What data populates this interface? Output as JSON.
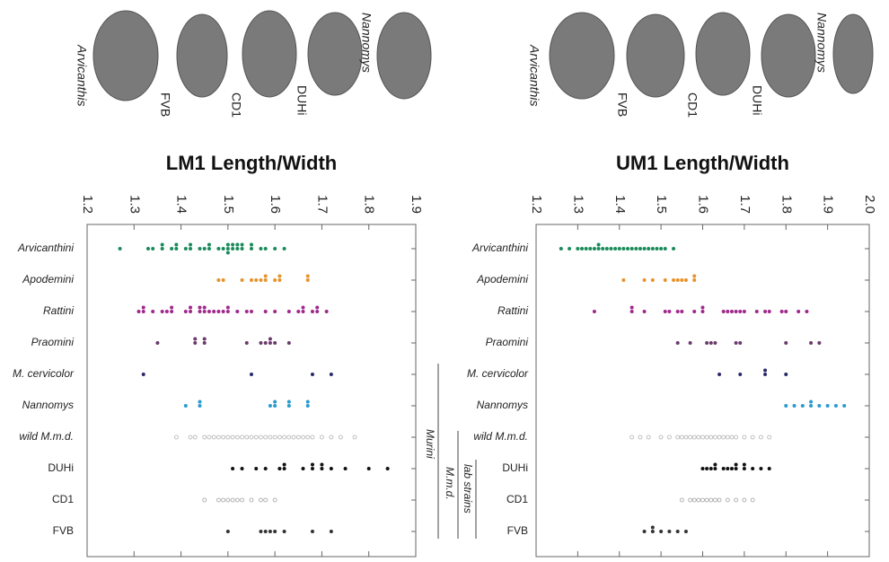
{
  "teeth": {
    "left": [
      "Arvicanthis",
      "FVB",
      "CD1",
      "DUHi",
      "Nannomys"
    ],
    "right": [
      "Arvicanthis",
      "FVB",
      "CD1",
      "DUHi",
      "Nannomys"
    ]
  },
  "groups": [
    "Murini",
    "M.m.d.",
    "lab strains"
  ],
  "chart_data": [
    {
      "type": "dot",
      "title": "LM1 Length/Width",
      "xlim": [
        1.2,
        1.9
      ],
      "xticks": [
        1.2,
        1.3,
        1.4,
        1.5,
        1.6,
        1.7,
        1.8,
        1.9
      ],
      "categories": [
        "Arvicanthini",
        "Apodemini",
        "Rattini",
        "Praomini",
        "M. cervicolor",
        "Nannomys",
        "wild M.m.d.",
        "DUHi",
        "CD1",
        "FVB"
      ],
      "colors": [
        "#1a8a5a",
        "#e8922a",
        "#a0288c",
        "#6a3a6a",
        "#2a2a6a",
        "#2a9ad0",
        "#b0b0b0",
        "#111111",
        "#a0a0a0",
        "#333333"
      ],
      "values": [
        [
          1.27,
          1.33,
          1.34,
          1.36,
          1.36,
          1.38,
          1.39,
          1.39,
          1.41,
          1.42,
          1.42,
          1.44,
          1.45,
          1.46,
          1.46,
          1.48,
          1.49,
          1.5,
          1.5,
          1.5,
          1.51,
          1.51,
          1.52,
          1.52,
          1.53,
          1.53,
          1.55,
          1.55,
          1.57,
          1.58,
          1.6,
          1.62
        ],
        [
          1.48,
          1.49,
          1.53,
          1.55,
          1.56,
          1.57,
          1.58,
          1.58,
          1.6,
          1.61,
          1.61,
          1.67,
          1.67
        ],
        [
          1.31,
          1.32,
          1.32,
          1.34,
          1.36,
          1.37,
          1.38,
          1.38,
          1.41,
          1.42,
          1.42,
          1.44,
          1.44,
          1.45,
          1.45,
          1.46,
          1.47,
          1.48,
          1.49,
          1.5,
          1.5,
          1.52,
          1.54,
          1.55,
          1.58,
          1.6,
          1.63,
          1.65,
          1.66,
          1.66,
          1.68,
          1.69,
          1.69,
          1.71
        ],
        [
          1.35,
          1.43,
          1.43,
          1.45,
          1.45,
          1.54,
          1.57,
          1.58,
          1.59,
          1.59,
          1.6,
          1.63
        ],
        [
          1.32,
          1.55,
          1.68,
          1.72
        ],
        [
          1.41,
          1.44,
          1.44,
          1.59,
          1.6,
          1.6,
          1.63,
          1.63,
          1.67,
          1.67
        ],
        [
          1.39,
          1.42,
          1.43,
          1.45,
          1.46,
          1.47,
          1.48,
          1.49,
          1.5,
          1.51,
          1.52,
          1.53,
          1.54,
          1.55,
          1.56,
          1.57,
          1.58,
          1.59,
          1.6,
          1.61,
          1.62,
          1.63,
          1.64,
          1.65,
          1.66,
          1.67,
          1.68,
          1.7,
          1.72,
          1.74,
          1.77
        ],
        [
          1.51,
          1.53,
          1.56,
          1.58,
          1.61,
          1.62,
          1.62,
          1.66,
          1.68,
          1.68,
          1.7,
          1.7,
          1.72,
          1.75,
          1.8,
          1.84
        ],
        [
          1.45,
          1.48,
          1.49,
          1.5,
          1.51,
          1.52,
          1.53,
          1.55,
          1.57,
          1.58,
          1.6
        ],
        [
          1.5,
          1.57,
          1.58,
          1.59,
          1.6,
          1.62,
          1.68,
          1.72
        ]
      ]
    },
    {
      "type": "dot",
      "title": "UM1 Length/Width",
      "xlim": [
        1.2,
        2.0
      ],
      "xticks": [
        1.2,
        1.3,
        1.4,
        1.5,
        1.6,
        1.7,
        1.8,
        1.9,
        {
          "value": 2,
          "label": "2.0"
        }
      ],
      "categories": [
        "Arvicanthini",
        "Apodemini",
        "Rattini",
        "Praomini",
        "M. cervicolor",
        "Nannomys",
        "wild M.m.d.",
        "DUHi",
        "CD1",
        "FVB"
      ],
      "colors": [
        "#1a8a5a",
        "#e8922a",
        "#a0288c",
        "#6a3a6a",
        "#2a2a6a",
        "#2a9ad0",
        "#b0b0b0",
        "#111111",
        "#a0a0a0",
        "#333333"
      ],
      "values": [
        [
          1.26,
          1.28,
          1.3,
          1.31,
          1.32,
          1.33,
          1.34,
          1.35,
          1.35,
          1.36,
          1.37,
          1.38,
          1.39,
          1.4,
          1.41,
          1.42,
          1.43,
          1.44,
          1.45,
          1.46,
          1.47,
          1.48,
          1.49,
          1.5,
          1.51,
          1.53
        ],
        [
          1.41,
          1.46,
          1.48,
          1.51,
          1.53,
          1.54,
          1.55,
          1.56,
          1.58,
          1.58
        ],
        [
          1.34,
          1.43,
          1.43,
          1.46,
          1.51,
          1.52,
          1.54,
          1.55,
          1.58,
          1.6,
          1.6,
          1.65,
          1.66,
          1.67,
          1.68,
          1.69,
          1.7,
          1.73,
          1.75,
          1.76,
          1.79,
          1.8,
          1.83,
          1.85
        ],
        [
          1.54,
          1.57,
          1.61,
          1.62,
          1.63,
          1.68,
          1.69,
          1.8,
          1.86,
          1.88
        ],
        [
          1.64,
          1.69,
          1.75,
          1.75,
          1.8
        ],
        [
          1.8,
          1.82,
          1.84,
          1.86,
          1.86,
          1.88,
          1.9,
          1.92,
          1.94
        ],
        [
          1.43,
          1.45,
          1.47,
          1.5,
          1.52,
          1.54,
          1.55,
          1.56,
          1.57,
          1.58,
          1.59,
          1.6,
          1.61,
          1.62,
          1.63,
          1.64,
          1.65,
          1.66,
          1.67,
          1.68,
          1.7,
          1.72,
          1.74,
          1.76
        ],
        [
          1.6,
          1.61,
          1.62,
          1.63,
          1.63,
          1.65,
          1.66,
          1.67,
          1.68,
          1.68,
          1.7,
          1.7,
          1.72,
          1.74,
          1.76
        ],
        [
          1.55,
          1.57,
          1.58,
          1.59,
          1.6,
          1.61,
          1.62,
          1.63,
          1.64,
          1.66,
          1.68,
          1.7,
          1.72
        ],
        [
          1.46,
          1.48,
          1.48,
          1.5,
          1.52,
          1.54,
          1.56
        ]
      ]
    }
  ]
}
